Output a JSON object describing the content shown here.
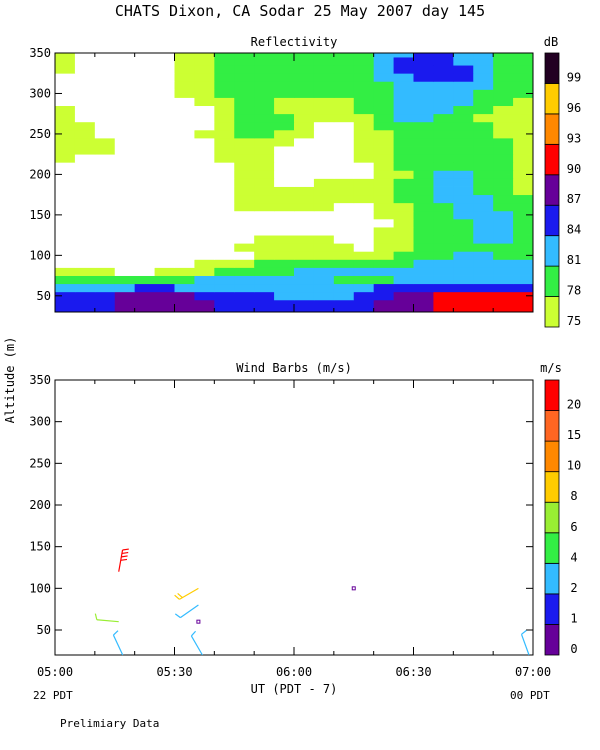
{
  "page": {
    "main_title": "CHATS Dixon, CA  Sodar  25 May 2007  day 145",
    "footnote": "Prelimiary Data",
    "ylabel": "Altitude (m)",
    "xlabel": "UT  (PDT - 7)",
    "left_date": "22 PDT",
    "right_date": "00 PDT"
  },
  "colors": {
    "background": "#ffffff",
    "palette": [
      "#ccff33",
      "#33ee44",
      "#33bbff",
      "#1a1aee",
      "#660099",
      "#ff0000",
      "#ff8800",
      "#ffcc00",
      "#220022"
    ]
  },
  "chart_data": [
    {
      "type": "heatmap",
      "title": "Reflectivity",
      "colorbar_title": "dB",
      "x_ticks": [
        "05:00",
        "05:30",
        "06:00",
        "06:30",
        "07:00"
      ],
      "y_ticks": [
        "50",
        "100",
        "150",
        "200",
        "250",
        "300",
        "350"
      ],
      "xlim_minutes": [
        0,
        120
      ],
      "ylim": [
        30,
        350
      ],
      "levels": [
        "75",
        "78",
        "81",
        "84",
        "87",
        "90",
        "93",
        "96",
        "99"
      ],
      "level_colors": [
        "#ccff33",
        "#33ee44",
        "#33bbff",
        "#1a1aee",
        "#660099",
        "#ff0000",
        "#ff8800",
        "#ffcc00",
        "#220022"
      ],
      "white_below": 75,
      "x": [
        0,
        10,
        20,
        30,
        40,
        50,
        60,
        70,
        80,
        90,
        100,
        110,
        120
      ],
      "y": [
        40,
        50,
        60,
        70,
        80,
        90,
        100,
        110,
        120,
        130,
        140,
        150,
        160,
        170,
        180,
        190,
        200,
        210,
        220,
        230,
        240,
        250,
        260,
        270,
        280,
        290,
        300,
        310,
        320,
        330,
        340,
        350
      ],
      "z_rows": [
        [
          87,
          86,
          88,
          89,
          87,
          86,
          84,
          84,
          87,
          89,
          91,
          91,
          91
        ],
        [
          86,
          85,
          88,
          89,
          86,
          85,
          83,
          83,
          86,
          88,
          91,
          91,
          91
        ],
        [
          83,
          83,
          84,
          84,
          83,
          83,
          82,
          82,
          84,
          85,
          86,
          86,
          85
        ],
        [
          78,
          78,
          79,
          80,
          82,
          81,
          81,
          81,
          80,
          82,
          83,
          82,
          82
        ],
        [
          76,
          76,
          74,
          76,
          78,
          80,
          81,
          81,
          81,
          82,
          81,
          81,
          81
        ],
        [
          74,
          74,
          72,
          74,
          76,
          78,
          78,
          79,
          79,
          81,
          81,
          81,
          81
        ],
        [
          72,
          71,
          71,
          73,
          74,
          75,
          76,
          77,
          75,
          80,
          81,
          81,
          80
        ],
        [
          72,
          71,
          70,
          71,
          73,
          76,
          76,
          76,
          74,
          79,
          80,
          81,
          80
        ],
        [
          72,
          71,
          70,
          71,
          73,
          75,
          75,
          75,
          74,
          78,
          80,
          82,
          80
        ],
        [
          72,
          71,
          70,
          72,
          73,
          75,
          74,
          74,
          74,
          78,
          80,
          82,
          80
        ],
        [
          72,
          70,
          70,
          72,
          73,
          74,
          74,
          73,
          73,
          78,
          80,
          82,
          80
        ],
        [
          72,
          70,
          71,
          72,
          73,
          75,
          74,
          73,
          74,
          78,
          81,
          82,
          80
        ],
        [
          72,
          70,
          71,
          72,
          73,
          76,
          75,
          75,
          74,
          78,
          81,
          81,
          80
        ],
        [
          72,
          71,
          71,
          72,
          73,
          76,
          76,
          77,
          75,
          79,
          82,
          81,
          80
        ],
        [
          73,
          71,
          71,
          72,
          73,
          78,
          75,
          77,
          76,
          80,
          82,
          79,
          77
        ],
        [
          73,
          72,
          71,
          72,
          73,
          77,
          73,
          76,
          75,
          80,
          82,
          79,
          77
        ],
        [
          74,
          72,
          71,
          73,
          74,
          76,
          73,
          74,
          74,
          79,
          82,
          79,
          77
        ],
        [
          75,
          73,
          72,
          73,
          74,
          76,
          74,
          74,
          75,
          79,
          81,
          79,
          77
        ],
        [
          77,
          74,
          72,
          74,
          75,
          77,
          74,
          73,
          76,
          80,
          81,
          79,
          77
        ],
        [
          78,
          76,
          72,
          74,
          75,
          77,
          74,
          73,
          76,
          80,
          81,
          79,
          76
        ],
        [
          78,
          76,
          73,
          74,
          75,
          78,
          74,
          73,
          76,
          80,
          81,
          79,
          76
        ],
        [
          79,
          74,
          72,
          73,
          76,
          80,
          76,
          73,
          76,
          80,
          81,
          78,
          76
        ],
        [
          79,
          74,
          72,
          73,
          75,
          81,
          77,
          74,
          77,
          81,
          80,
          78,
          76
        ],
        [
          78,
          73,
          72,
          73,
          75,
          81,
          77,
          75,
          78,
          82,
          80,
          77,
          75
        ],
        [
          76,
          73,
          72,
          73,
          75,
          80,
          77,
          76,
          79,
          82,
          81,
          78,
          76
        ],
        [
          75,
          72,
          72,
          73,
          76,
          80,
          77,
          77,
          80,
          82,
          82,
          79,
          77
        ],
        [
          75,
          72,
          73,
          74,
          78,
          81,
          78,
          78,
          80,
          82,
          83,
          80,
          78
        ],
        [
          75,
          72,
          73,
          74,
          78,
          80,
          78,
          78,
          80,
          83,
          84,
          80,
          78
        ],
        [
          75,
          73,
          73,
          74,
          78,
          80,
          79,
          79,
          81,
          84,
          85,
          81,
          79
        ],
        [
          76,
          74,
          74,
          75,
          78,
          80,
          79,
          80,
          81,
          85,
          85,
          81,
          79
        ],
        [
          76,
          74,
          74,
          75,
          78,
          80,
          79,
          80,
          81,
          85,
          84,
          81,
          79
        ],
        [
          76,
          74,
          74,
          75,
          78,
          80,
          79,
          80,
          81,
          84,
          84,
          80,
          79
        ]
      ]
    },
    {
      "type": "scatter",
      "title": "Wind Barbs (m/s)",
      "colorbar_title": "m/s",
      "x_ticks": [
        "05:00",
        "05:30",
        "06:00",
        "06:30",
        "07:00"
      ],
      "y_ticks": [
        "50",
        "100",
        "150",
        "200",
        "250",
        "300",
        "350"
      ],
      "xlim_minutes": [
        0,
        120
      ],
      "ylim": [
        20,
        350
      ],
      "levels": [
        "0",
        "1",
        "2",
        "4",
        "6",
        "8",
        "10",
        "15",
        "20"
      ],
      "level_colors": [
        "#660099",
        "#1a1aee",
        "#33bbff",
        "#33ee44",
        "#99ee33",
        "#ffcc00",
        "#ff8800",
        "#ff6622",
        "#ff0000"
      ],
      "barbs": [
        {
          "time_min": 16,
          "altitude": 120,
          "speed": 20,
          "dir_deg": 10
        },
        {
          "time_min": 17,
          "altitude": 20,
          "speed": 2,
          "dir_deg": 335
        },
        {
          "time_min": 16,
          "altitude": 60,
          "speed": 6,
          "dir_deg": 275
        },
        {
          "time_min": 36,
          "altitude": 100,
          "speed": 8,
          "dir_deg": 240
        },
        {
          "time_min": 36,
          "altitude": 80,
          "speed": 2,
          "dir_deg": 235
        },
        {
          "time_min": 37,
          "altitude": 20,
          "speed": 2,
          "dir_deg": 330
        },
        {
          "time_min": 36,
          "altitude": 60,
          "speed": 0,
          "dir_deg": 0
        },
        {
          "time_min": 75,
          "altitude": 100,
          "speed": 0,
          "dir_deg": 0
        },
        {
          "time_min": 119,
          "altitude": 20,
          "speed": 2,
          "dir_deg": 340
        }
      ]
    }
  ]
}
